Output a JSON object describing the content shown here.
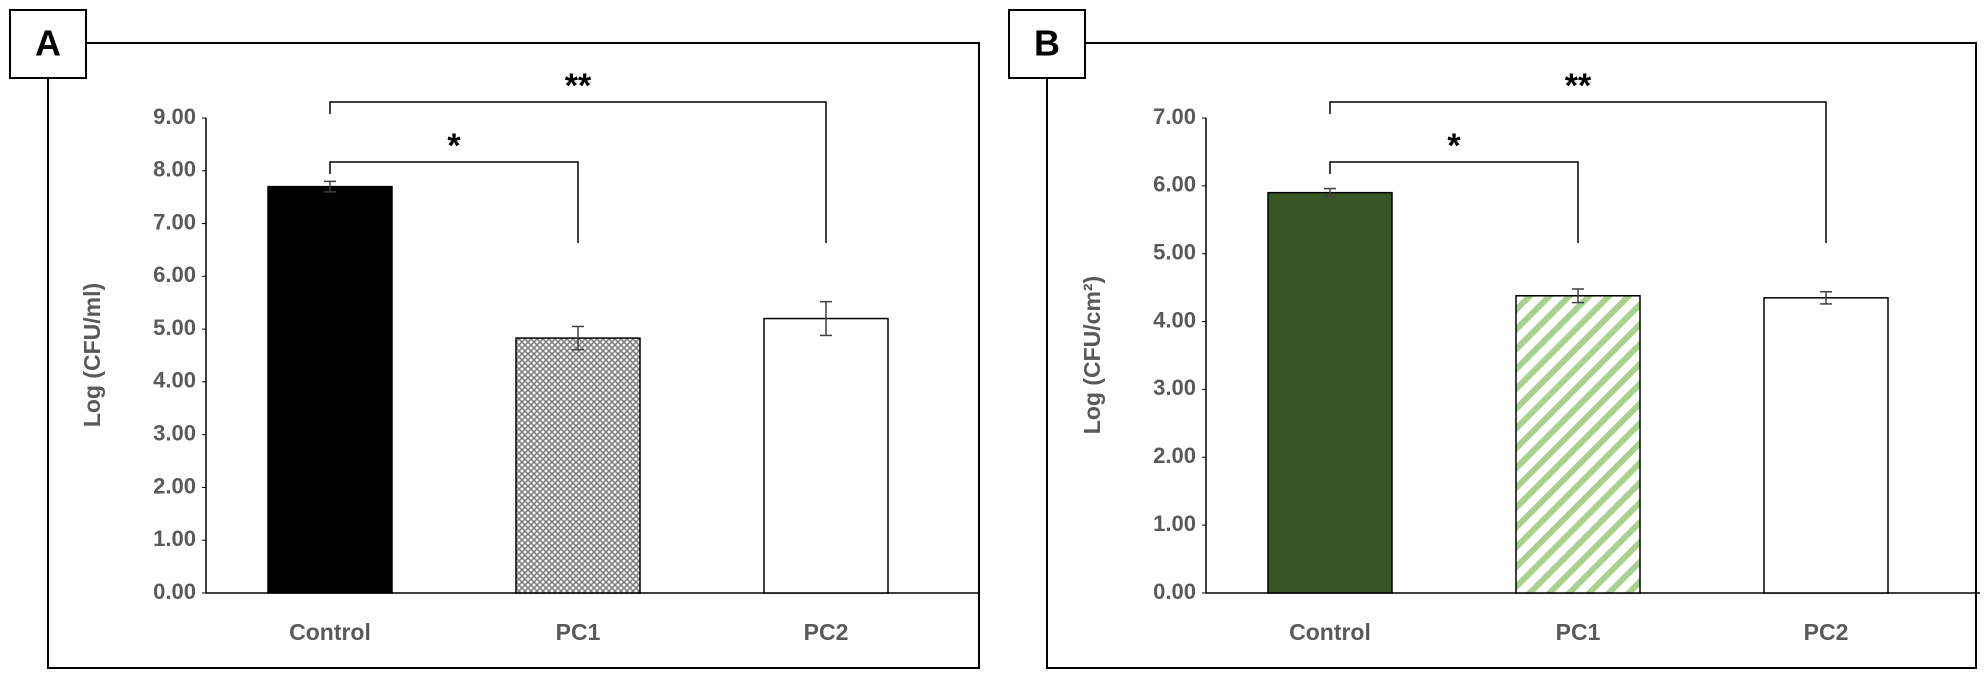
{
  "chart_data": [
    {
      "type": "bar",
      "panel_label": "A",
      "ylabel": "Log (CFU/ml)",
      "categories": [
        "Control",
        "PC1",
        "PC2"
      ],
      "values": [
        7.7,
        4.83,
        5.2
      ],
      "errors": [
        0.1,
        0.22,
        0.32
      ],
      "colors": [
        "#000000",
        "#808080",
        "#ffffff"
      ],
      "annotations": [
        "*",
        "**"
      ],
      "ylim": [
        0,
        9
      ],
      "yticks": [
        {
          "value": 0,
          "label": "0.00"
        },
        {
          "value": 1,
          "label": "1.00"
        },
        {
          "value": 2,
          "label": "2.00"
        },
        {
          "value": 3,
          "label": "3.00"
        },
        {
          "value": 4,
          "label": "4.00"
        },
        {
          "value": 5,
          "label": "5.00"
        },
        {
          "value": 6,
          "label": "6.00"
        },
        {
          "value": 7,
          "label": "7.00"
        },
        {
          "value": 8,
          "label": "8.00"
        },
        {
          "value": 9,
          "label": "9.00"
        }
      ]
    },
    {
      "type": "bar",
      "panel_label": "B",
      "ylabel": "Log (CFU/cm²)",
      "categories": [
        "Control",
        "PC1",
        "PC2"
      ],
      "values": [
        5.9,
        4.38,
        4.35
      ],
      "errors": [
        0.06,
        0.1,
        0.09
      ],
      "colors": [
        "#375623",
        "#a9d18e",
        "#ffffff"
      ],
      "annotations": [
        "*",
        "**"
      ],
      "ylim": [
        0,
        7
      ],
      "yticks": [
        {
          "value": 0,
          "label": "0.00"
        },
        {
          "value": 1,
          "label": "1.00"
        },
        {
          "value": 2,
          "label": "2.00"
        },
        {
          "value": 3,
          "label": "3.00"
        },
        {
          "value": 4,
          "label": "4.00"
        },
        {
          "value": 5,
          "label": "5.00"
        },
        {
          "value": 6,
          "label": "6.00"
        },
        {
          "value": 7,
          "label": "7.00"
        }
      ]
    }
  ]
}
